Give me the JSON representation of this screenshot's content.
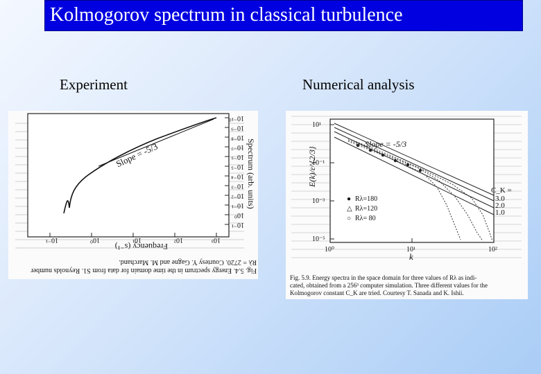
{
  "slide": {
    "title": "Kolmogorov spectrum in classical turbulence",
    "left_label": "Experiment",
    "right_label": "Numerical analysis"
  },
  "left_figure": {
    "slope_label": "Slope = -5/3",
    "x_label": "Frequency (s⁻¹)",
    "y_label": "Spectrum (arb. units)",
    "x_ticks": [
      "10⁻¹",
      "10⁰",
      "10¹",
      "10²",
      "10³"
    ],
    "y_ticks": [
      "10⁻¹",
      "10⁰",
      "10⁻¹",
      "10⁻²",
      "10⁻³",
      "10⁻⁴",
      "10⁻⁵",
      "10⁻⁶",
      "10⁻⁷",
      "10⁻⁸",
      "10⁻⁹",
      "10⁻¹⁰"
    ],
    "caption_line1": "Fig. 5.4. Energy spectrum in the time domain for data from S1. Reynolds number",
    "caption_line2": "Rλ = 2720. Courtesy Y. Gagne and M. Marchand."
  },
  "right_figure": {
    "slope_label": "Slope = -5/3",
    "y_label": "E(k)/ε^{2/3}",
    "x_label": "k",
    "x_ticks": [
      "10⁰",
      "10¹",
      "10²"
    ],
    "y_ticks": [
      "10¹",
      "10⁻¹",
      "10⁻³",
      "10⁻⁵"
    ],
    "ck_title": "C_K =",
    "ck_values": [
      "3.0",
      "2.0",
      "1.0"
    ],
    "legend": [
      {
        "marker": "●",
        "label": "Rλ=180"
      },
      {
        "marker": "△",
        "label": "Rλ=120"
      },
      {
        "marker": "○",
        "label": "Rλ= 80"
      }
    ],
    "caption_line1": "Fig. 5.9. Energy spectra in the space domain for three values of Rλ as indi-",
    "caption_line2": "cated, obtained from a 256³ computer simulation. Three different values for the",
    "caption_line3": "Kolmogorov constant C_K are tried. Courtesy T. Sanada and K. Ishii."
  }
}
